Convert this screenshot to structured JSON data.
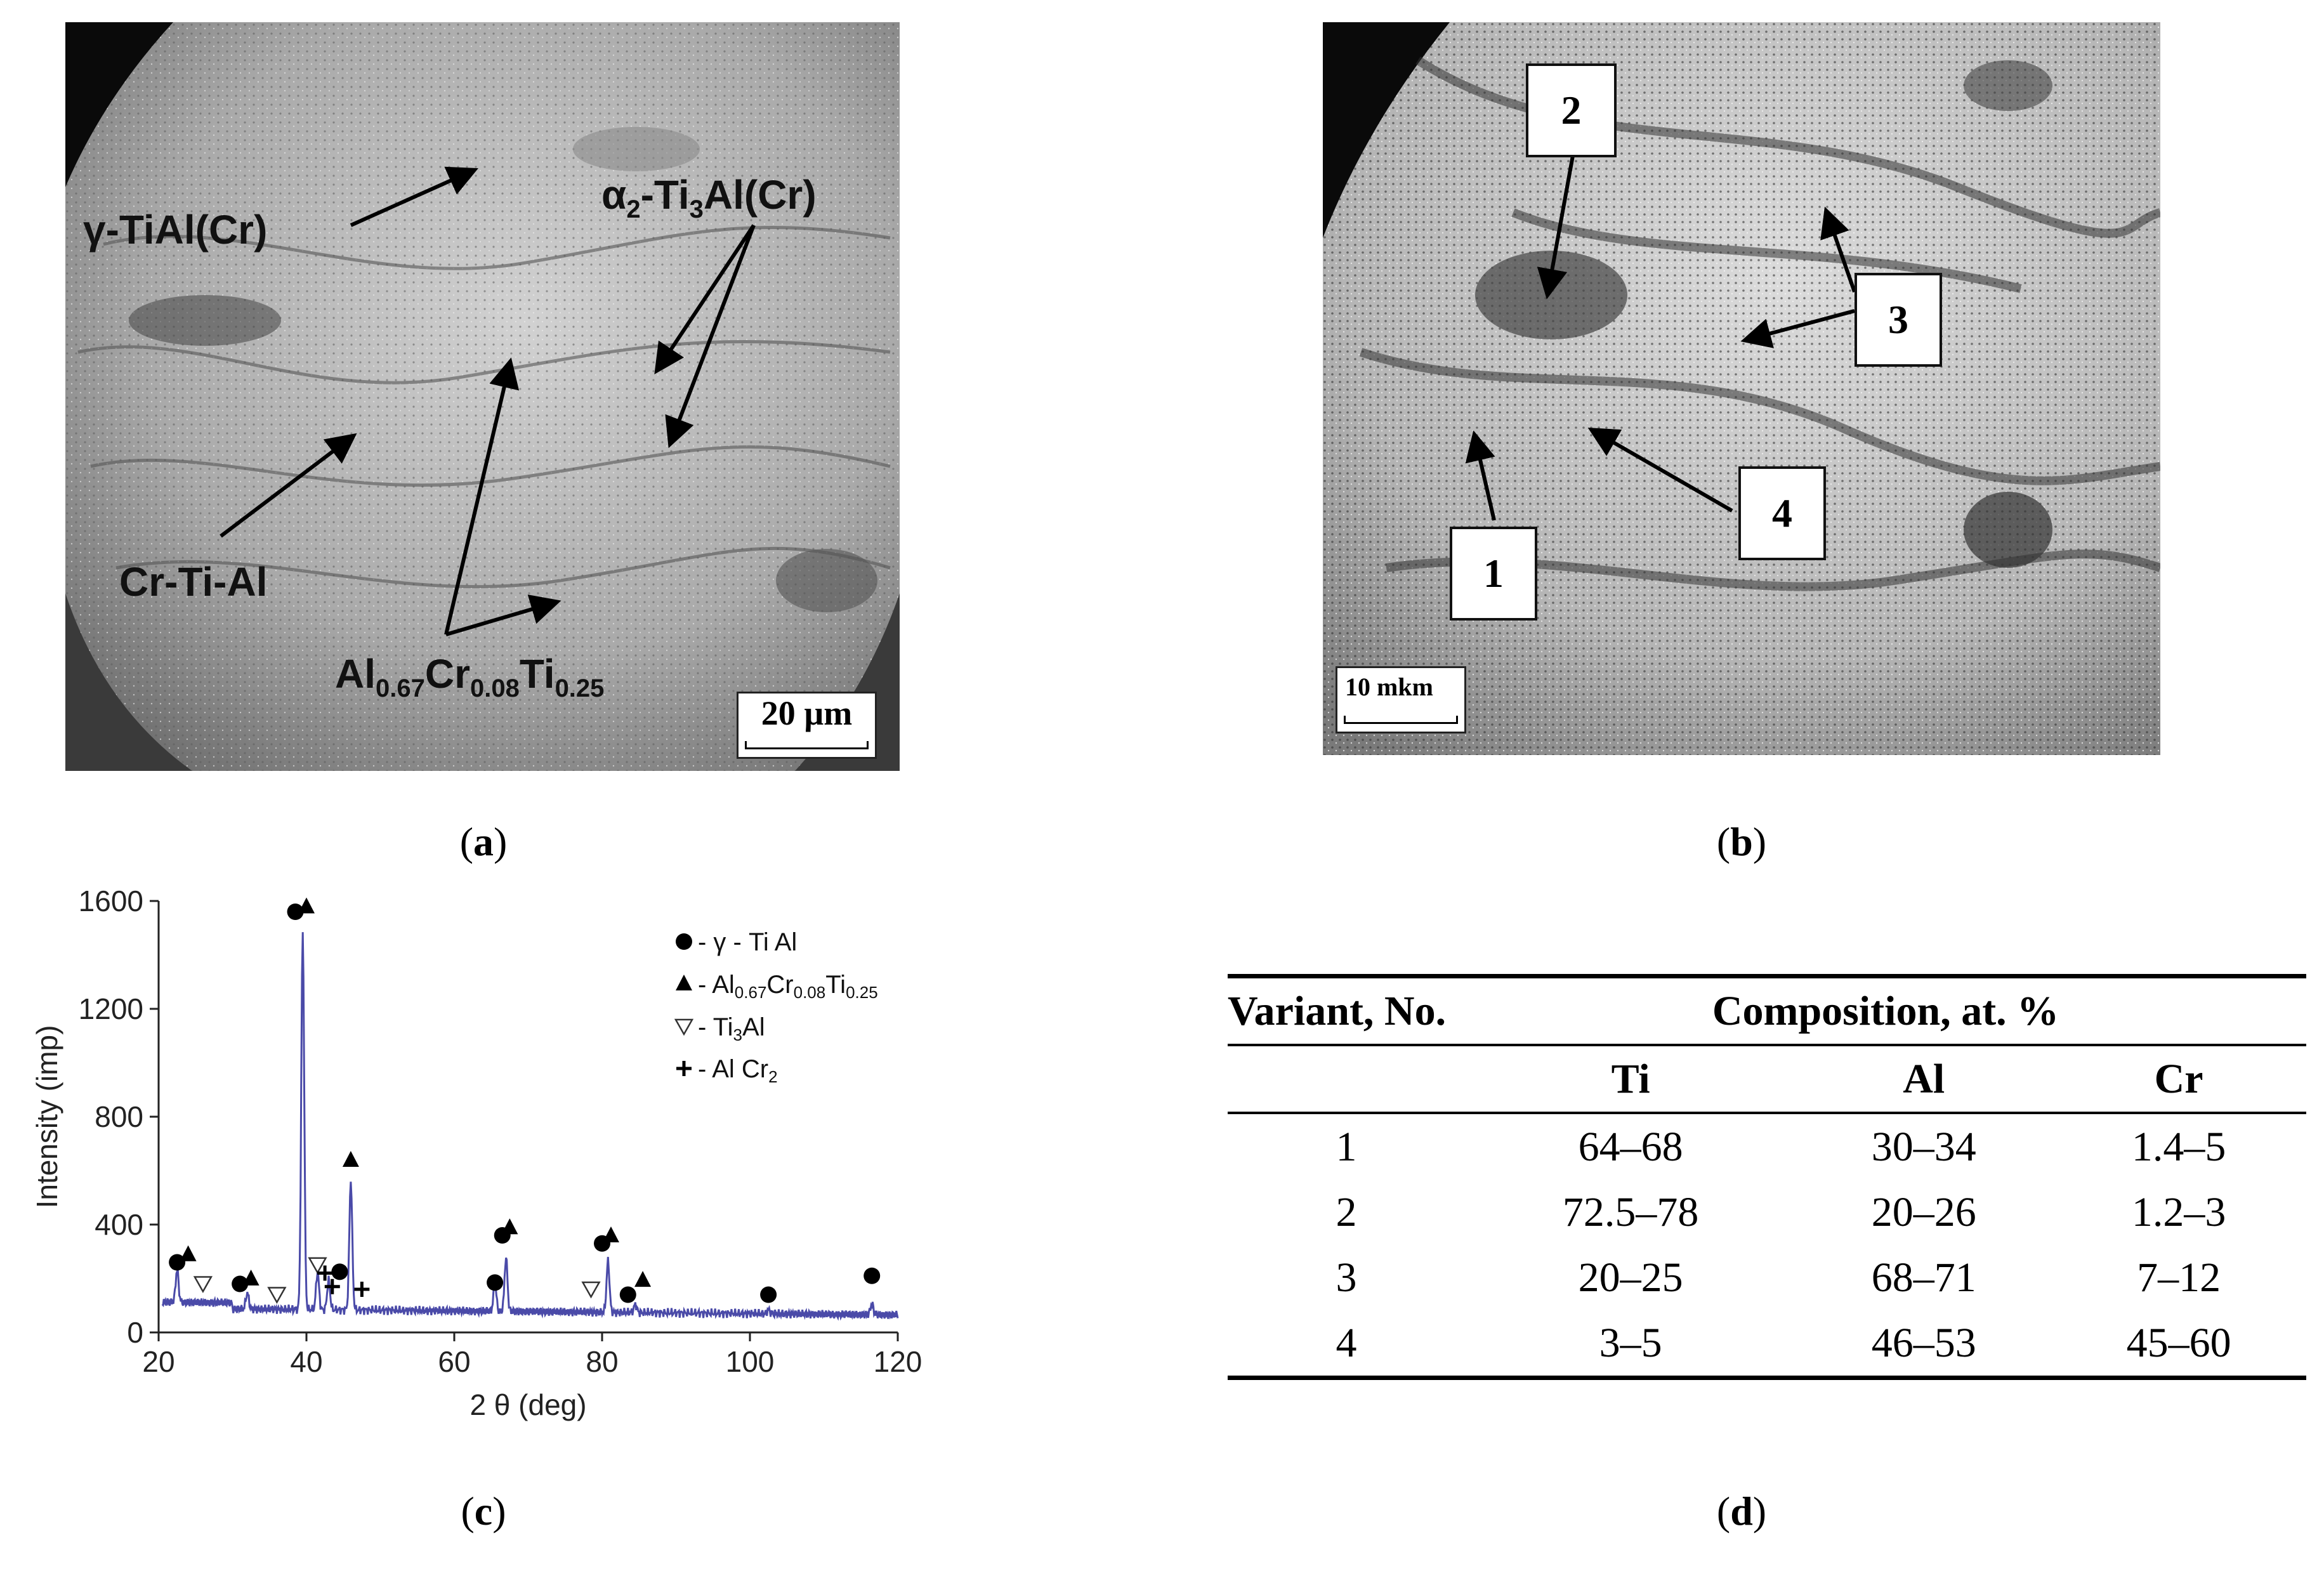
{
  "panel_a": {
    "caption_open": "(",
    "caption_letter": "a",
    "caption_close": ")",
    "labels": {
      "gamma": "γ-TiAl(Cr)",
      "alpha2_main": "α",
      "alpha2_sub": "2",
      "alpha2_mid": "-Ti",
      "alpha2_sub2": "3",
      "alpha2_end": "Al(Cr)",
      "crtial": "Cr-Ti-Al",
      "al_main": "Al",
      "al_sub1": "0.67",
      "cr": "Cr",
      "cr_sub": "0.08",
      "ti": "Ti",
      "ti_sub": "0.25"
    },
    "scale": "20 µm"
  },
  "panel_b": {
    "caption_open": "(",
    "caption_letter": "b",
    "caption_close": ")",
    "markers": [
      "1",
      "2",
      "3",
      "4"
    ],
    "scale": "10 mkm"
  },
  "panel_c": {
    "caption_open": "(",
    "caption_letter": "c",
    "caption_close": ")"
  },
  "panel_d": {
    "caption_open": "(",
    "caption_letter": "d",
    "caption_close": ")",
    "header_variant": "Variant, No.",
    "header_composition": "Composition, at. %",
    "columns": [
      "Ti",
      "Al",
      "Cr"
    ],
    "rows": [
      [
        "1",
        "64–68",
        "30–34",
        "1.4–5"
      ],
      [
        "2",
        "72.5–78",
        "20–26",
        "1.2–3"
      ],
      [
        "3",
        "20–25",
        "68–71",
        "7–12"
      ],
      [
        "4",
        "3–5",
        "46–53",
        "45–60"
      ]
    ]
  },
  "chart_data": {
    "type": "line",
    "xlabel": "2 θ (deg)",
    "ylabel": "Intensity (imp)",
    "xlim": [
      20,
      120
    ],
    "ylim": [
      0,
      1600
    ],
    "xticks": [
      20,
      40,
      60,
      80,
      100,
      120
    ],
    "yticks": [
      0,
      400,
      800,
      1200,
      1600
    ],
    "line_color": "#4a4aa8",
    "baseline": 90,
    "peaks": [
      {
        "x": 22.5,
        "y": 210
      },
      {
        "x": 32,
        "y": 150
      },
      {
        "x": 39.5,
        "y": 1490
      },
      {
        "x": 41.5,
        "y": 230
      },
      {
        "x": 43,
        "y": 200
      },
      {
        "x": 46,
        "y": 570
      },
      {
        "x": 65.5,
        "y": 190
      },
      {
        "x": 67,
        "y": 290
      },
      {
        "x": 80.8,
        "y": 280
      },
      {
        "x": 84.5,
        "y": 120
      },
      {
        "x": 102.5,
        "y": 105
      },
      {
        "x": 116.5,
        "y": 130
      }
    ],
    "legend": [
      {
        "symbol": "circle",
        "label": "- γ - Ti Al"
      },
      {
        "symbol": "triangle",
        "label_main": "- Al",
        "sub1": "0.67",
        "mid1": "Cr",
        "sub2": "0.08",
        "mid2": "Ti",
        "sub3": "0.25"
      },
      {
        "symbol": "triangle-open",
        "label_main": "- Ti",
        "sub1": "3",
        "mid1": "Al"
      },
      {
        "symbol": "plus",
        "label_main": "- Al Cr",
        "sub1": "2"
      }
    ],
    "markers": [
      {
        "symbol": "circle",
        "x": 22.5,
        "y": 260
      },
      {
        "symbol": "triangle",
        "x": 24,
        "y": 290
      },
      {
        "symbol": "triangle-open",
        "x": 26,
        "y": 180
      },
      {
        "symbol": "circle",
        "x": 31,
        "y": 180
      },
      {
        "symbol": "triangle",
        "x": 32.5,
        "y": 200
      },
      {
        "symbol": "triangle-open",
        "x": 36,
        "y": 140
      },
      {
        "symbol": "circle",
        "x": 38.5,
        "y": 1560
      },
      {
        "symbol": "triangle",
        "x": 40,
        "y": 1580
      },
      {
        "symbol": "triangle-open",
        "x": 41.5,
        "y": 250
      },
      {
        "symbol": "plus",
        "x": 42.5,
        "y": 220
      },
      {
        "symbol": "circle",
        "x": 44.5,
        "y": 225
      },
      {
        "symbol": "plus",
        "x": 43.5,
        "y": 170
      },
      {
        "symbol": "plus",
        "x": 47.5,
        "y": 160
      },
      {
        "symbol": "triangle",
        "x": 46,
        "y": 640
      },
      {
        "symbol": "circle",
        "x": 65.5,
        "y": 185
      },
      {
        "symbol": "circle",
        "x": 66.5,
        "y": 360
      },
      {
        "symbol": "triangle",
        "x": 67.5,
        "y": 390
      },
      {
        "symbol": "triangle-open",
        "x": 78.5,
        "y": 160
      },
      {
        "symbol": "circle",
        "x": 80,
        "y": 330
      },
      {
        "symbol": "triangle",
        "x": 81.2,
        "y": 360
      },
      {
        "symbol": "circle",
        "x": 83.5,
        "y": 140
      },
      {
        "symbol": "triangle",
        "x": 85.5,
        "y": 195
      },
      {
        "symbol": "circle",
        "x": 102.5,
        "y": 140
      },
      {
        "symbol": "circle",
        "x": 116.5,
        "y": 210
      }
    ]
  }
}
